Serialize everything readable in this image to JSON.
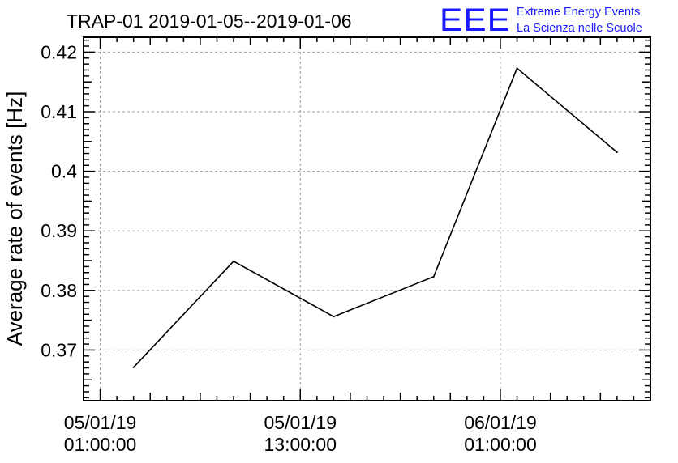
{
  "header": {
    "title": "TRAP-01 2019-01-05--2019-01-06"
  },
  "logo": {
    "letters": "EEE",
    "line1": "Extreme Energy Events",
    "line2": "La Scienza nelle Scuole",
    "color": "#1a1aff"
  },
  "chart_data": {
    "type": "line",
    "title": "TRAP-01 2019-01-05--2019-01-06",
    "xlabel": "",
    "ylabel": "Average rate of events [Hz]",
    "ylim": [
      0.3615,
      0.4225
    ],
    "xlim": [
      "2019-01-05 00:00",
      "2019-01-06 10:00"
    ],
    "grid": true,
    "x_ticks": [
      {
        "at": "2019-01-05 01:00",
        "line1": "05/01/19",
        "line2": "01:00:00"
      },
      {
        "at": "2019-01-05 13:00",
        "line1": "05/01/19",
        "line2": "13:00:00"
      },
      {
        "at": "2019-01-06 01:00",
        "line1": "06/01/19",
        "line2": "01:00:00"
      }
    ],
    "y_ticks": [
      {
        "value": 0.37,
        "label": "0.37"
      },
      {
        "value": 0.38,
        "label": "0.38"
      },
      {
        "value": 0.39,
        "label": "0.39"
      },
      {
        "value": 0.4,
        "label": "0.4"
      },
      {
        "value": 0.41,
        "label": "0.41"
      },
      {
        "value": 0.42,
        "label": "0.42"
      }
    ],
    "series": [
      {
        "x": [
          "2019-01-05 03:00",
          "2019-01-05 09:00",
          "2019-01-05 15:00",
          "2019-01-05 21:00",
          "2019-01-06 02:00",
          "2019-01-06 08:00"
        ],
        "y": [
          0.3671,
          0.3849,
          0.3756,
          0.3823,
          0.4173,
          0.4032
        ]
      }
    ]
  }
}
